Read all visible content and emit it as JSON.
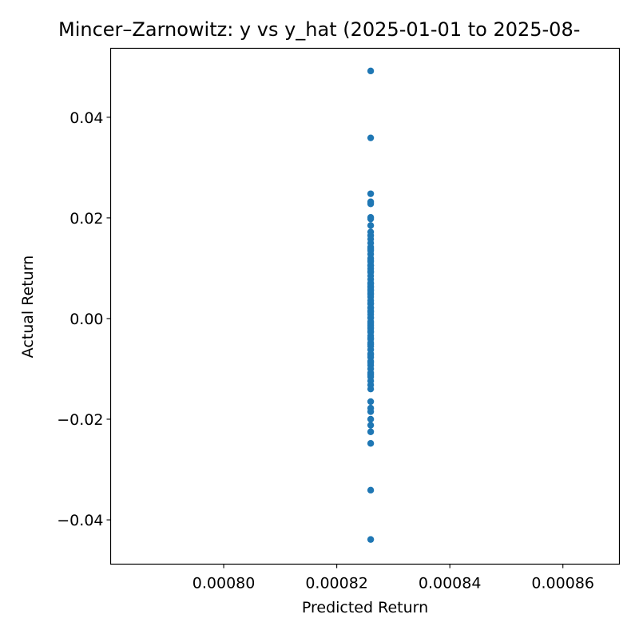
{
  "chart_data": {
    "type": "scatter",
    "title": "Mincer–Zarnowitz: y vs y_hat (2025-01-01 to 2025-08-",
    "xlabel": "Predicted Return",
    "ylabel": "Actual Return",
    "xlim": [
      0.00078,
      0.00087
    ],
    "ylim": [
      -0.0488,
      0.0537
    ],
    "x_ticks": [
      0.0008,
      0.00082,
      0.00084,
      0.00086
    ],
    "x_tick_labels": [
      "0.00080",
      "0.00082",
      "0.00084",
      "0.00086"
    ],
    "y_ticks": [
      -0.04,
      -0.02,
      0.0,
      0.02,
      0.04
    ],
    "y_tick_labels": [
      "−0.04",
      "−0.02",
      "0.00",
      "0.02",
      "0.04"
    ],
    "grid": false,
    "legend": "none",
    "marker_color": "#1f77b4",
    "series": [
      {
        "x": [
          0.000826,
          0.000826,
          0.000826,
          0.000826,
          0.000826,
          0.000826,
          0.000826,
          0.000826,
          0.000826,
          0.000826,
          0.000826,
          0.000826,
          0.000826,
          0.000826,
          0.000826,
          0.000826,
          0.000826,
          0.000826,
          0.000826,
          0.000826,
          0.000826,
          0.000826,
          0.000826,
          0.000826,
          0.000826,
          0.000826,
          0.000826,
          0.000826,
          0.000826,
          0.000826,
          0.000826,
          0.000826,
          0.000826,
          0.000826,
          0.000826,
          0.000826,
          0.000826,
          0.000826,
          0.000826,
          0.000826,
          0.000826,
          0.000826,
          0.000826,
          0.000826,
          0.000826,
          0.000826,
          0.000826,
          0.000826,
          0.000826,
          0.000826,
          0.000826,
          0.000826,
          0.000826,
          0.000826,
          0.000826,
          0.000826,
          0.000826,
          0.000826,
          0.000826,
          0.000826,
          0.000826,
          0.000826,
          0.000826,
          0.000826,
          0.000826,
          0.000826,
          0.000826,
          0.000826,
          0.000826,
          0.000826,
          0.000826,
          0.000826,
          0.000826,
          0.000826,
          0.000826,
          0.000826,
          0.000826,
          0.000826,
          0.000826,
          0.000826,
          0.000826
        ],
        "y": [
          0.0492,
          0.0359,
          0.0248,
          0.0232,
          0.0228,
          0.0201,
          0.0198,
          0.0185,
          0.0172,
          0.0165,
          0.0158,
          0.015,
          0.0142,
          0.0135,
          0.0128,
          0.012,
          0.0113,
          0.0106,
          0.0099,
          0.0092,
          0.0085,
          0.0078,
          0.0071,
          0.0064,
          0.0057,
          0.005,
          0.0043,
          0.0036,
          0.0029,
          0.0022,
          0.0015,
          0.0008,
          0.0001,
          -0.0006,
          -0.0013,
          -0.002,
          -0.0027,
          -0.0034,
          -0.0041,
          -0.0048,
          -0.0055,
          -0.0062,
          -0.007,
          -0.0077,
          -0.0085,
          -0.0093,
          -0.01,
          -0.0108,
          -0.0116,
          -0.0124,
          -0.0132,
          -0.014,
          -0.0165,
          -0.0178,
          -0.0185,
          -0.02,
          -0.0212,
          -0.0225,
          -0.0248,
          -0.0341,
          -0.0439,
          0.0105,
          0.0048,
          -0.0025,
          0.0062,
          -0.0051,
          0.0013,
          -0.0088,
          0.0094,
          0.0031,
          -0.0009,
          0.0116,
          -0.0072,
          0.0021,
          -0.0039,
          0.0069,
          -0.0112,
          0.0138,
          0.0002,
          -0.0017,
          0.0055
        ]
      }
    ]
  }
}
